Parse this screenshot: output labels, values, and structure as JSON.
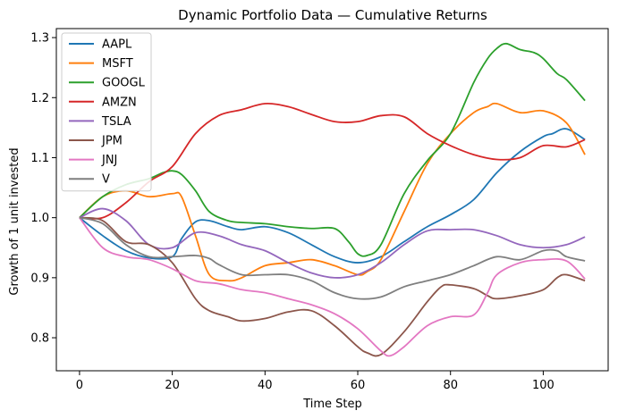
{
  "chart_data": {
    "type": "line",
    "title": "Dynamic Portfolio Data — Cumulative Returns",
    "xlabel": "Time Step",
    "ylabel": "Growth of 1 unit invested",
    "xlim": [
      -5,
      114
    ],
    "ylim": [
      0.745,
      1.315
    ],
    "xticks": [
      0,
      20,
      40,
      60,
      80,
      100
    ],
    "yticks": [
      0.8,
      0.9,
      1.0,
      1.1,
      1.2,
      1.3
    ],
    "xtick_labels": [
      "0",
      "20",
      "40",
      "60",
      "80",
      "100"
    ],
    "ytick_labels": [
      "0.8",
      "0.9",
      "1.0",
      "1.1",
      "1.2",
      "1.3"
    ],
    "grid": false,
    "legend_position": "upper-left",
    "series": [
      {
        "name": "AAPL",
        "color": "#1f77b4",
        "x": [
          0,
          5,
          10,
          15,
          20,
          22,
          25,
          28,
          32,
          35,
          40,
          45,
          50,
          55,
          60,
          65,
          70,
          75,
          80,
          85,
          90,
          95,
          100,
          102,
          105,
          109
        ],
        "y": [
          1.0,
          0.97,
          0.945,
          0.933,
          0.935,
          0.965,
          0.993,
          0.995,
          0.985,
          0.98,
          0.985,
          0.975,
          0.955,
          0.935,
          0.925,
          0.935,
          0.96,
          0.985,
          1.005,
          1.03,
          1.075,
          1.11,
          1.135,
          1.14,
          1.148,
          1.13
        ]
      },
      {
        "name": "MSFT",
        "color": "#ff7f0e",
        "x": [
          0,
          5,
          10,
          15,
          20,
          22,
          25,
          28,
          32,
          35,
          40,
          45,
          50,
          55,
          60,
          62,
          65,
          70,
          75,
          80,
          85,
          88,
          90,
          95,
          100,
          105,
          109
        ],
        "y": [
          1.0,
          1.035,
          1.045,
          1.035,
          1.04,
          1.035,
          0.97,
          0.905,
          0.895,
          0.9,
          0.92,
          0.925,
          0.93,
          0.92,
          0.905,
          0.91,
          0.93,
          1.01,
          1.09,
          1.14,
          1.175,
          1.185,
          1.19,
          1.175,
          1.178,
          1.158,
          1.105
        ]
      },
      {
        "name": "GOOGL",
        "color": "#2ca02c",
        "x": [
          0,
          5,
          10,
          15,
          18,
          20,
          22,
          25,
          28,
          32,
          35,
          40,
          45,
          50,
          55,
          58,
          60,
          62,
          65,
          70,
          75,
          80,
          85,
          88,
          90,
          92,
          95,
          98,
          100,
          103,
          105,
          109
        ],
        "y": [
          1.0,
          1.035,
          1.055,
          1.065,
          1.075,
          1.078,
          1.072,
          1.045,
          1.01,
          0.995,
          0.992,
          0.99,
          0.985,
          0.982,
          0.982,
          0.96,
          0.94,
          0.937,
          0.955,
          1.04,
          1.095,
          1.14,
          1.225,
          1.265,
          1.282,
          1.29,
          1.28,
          1.275,
          1.265,
          1.24,
          1.23,
          1.195
        ]
      },
      {
        "name": "AMZN",
        "color": "#d62728",
        "x": [
          0,
          5,
          10,
          15,
          20,
          25,
          30,
          35,
          40,
          45,
          50,
          55,
          60,
          65,
          70,
          75,
          80,
          85,
          90,
          95,
          100,
          105,
          109
        ],
        "y": [
          1.0,
          1.0,
          1.025,
          1.06,
          1.085,
          1.14,
          1.17,
          1.18,
          1.19,
          1.185,
          1.172,
          1.16,
          1.16,
          1.17,
          1.168,
          1.14,
          1.12,
          1.105,
          1.097,
          1.1,
          1.12,
          1.118,
          1.13
        ]
      },
      {
        "name": "TSLA",
        "color": "#9467bd",
        "x": [
          0,
          5,
          10,
          15,
          20,
          25,
          30,
          35,
          40,
          45,
          50,
          55,
          60,
          65,
          70,
          75,
          80,
          85,
          90,
          95,
          100,
          105,
          109
        ],
        "y": [
          1.0,
          1.015,
          0.995,
          0.955,
          0.95,
          0.975,
          0.97,
          0.955,
          0.945,
          0.925,
          0.908,
          0.9,
          0.905,
          0.925,
          0.955,
          0.978,
          0.98,
          0.98,
          0.97,
          0.955,
          0.95,
          0.955,
          0.968
        ]
      },
      {
        "name": "JPM",
        "color": "#8c564b",
        "x": [
          0,
          5,
          10,
          15,
          20,
          25,
          28,
          32,
          35,
          40,
          45,
          50,
          55,
          60,
          62,
          65,
          70,
          75,
          78,
          80,
          85,
          88,
          90,
          95,
          100,
          103,
          105,
          109
        ],
        "y": [
          1.0,
          0.995,
          0.96,
          0.955,
          0.925,
          0.865,
          0.845,
          0.835,
          0.828,
          0.832,
          0.843,
          0.845,
          0.82,
          0.785,
          0.775,
          0.772,
          0.81,
          0.86,
          0.885,
          0.888,
          0.882,
          0.87,
          0.865,
          0.87,
          0.88,
          0.9,
          0.905,
          0.895
        ]
      },
      {
        "name": "JNJ",
        "color": "#e377c2",
        "x": [
          0,
          5,
          10,
          15,
          20,
          25,
          30,
          35,
          40,
          45,
          50,
          55,
          60,
          65,
          67,
          70,
          75,
          80,
          85,
          88,
          90,
          95,
          100,
          105,
          109
        ],
        "y": [
          1.0,
          0.95,
          0.935,
          0.93,
          0.915,
          0.895,
          0.89,
          0.88,
          0.875,
          0.865,
          0.855,
          0.84,
          0.815,
          0.778,
          0.77,
          0.785,
          0.82,
          0.835,
          0.838,
          0.875,
          0.905,
          0.925,
          0.93,
          0.928,
          0.898
        ]
      },
      {
        "name": "V",
        "color": "#7f7f7f",
        "x": [
          0,
          5,
          10,
          15,
          20,
          25,
          28,
          30,
          35,
          40,
          45,
          50,
          55,
          60,
          65,
          70,
          75,
          80,
          85,
          90,
          95,
          100,
          103,
          105,
          109
        ],
        "y": [
          1.0,
          0.99,
          0.955,
          0.935,
          0.935,
          0.937,
          0.932,
          0.922,
          0.905,
          0.905,
          0.905,
          0.895,
          0.875,
          0.865,
          0.868,
          0.885,
          0.895,
          0.905,
          0.92,
          0.935,
          0.93,
          0.945,
          0.945,
          0.935,
          0.928
        ]
      }
    ]
  }
}
